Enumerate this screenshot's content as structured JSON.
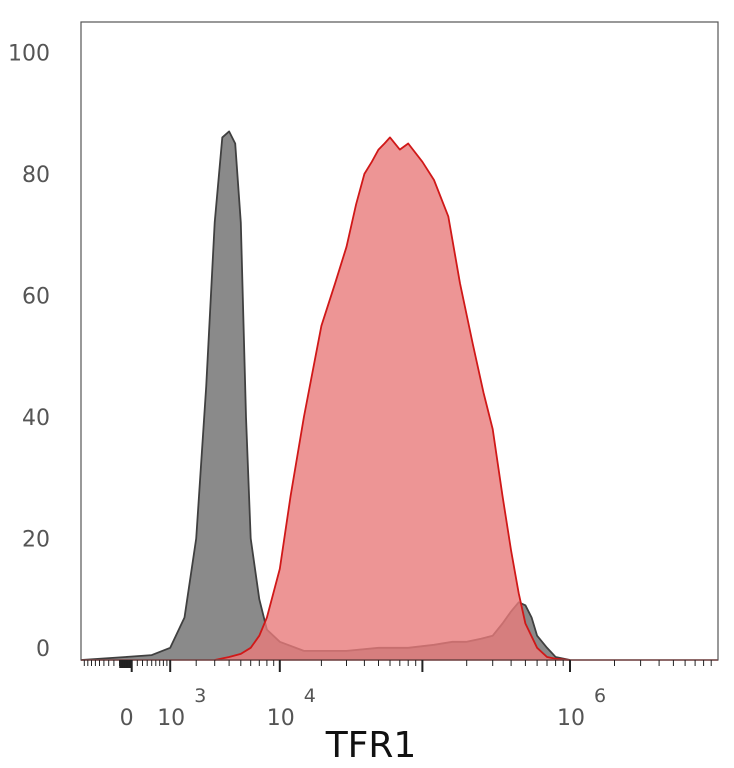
{
  "chart_data": {
    "type": "area",
    "title": "",
    "xlabel": "TFR1",
    "ylabel": "",
    "x_scale": "biexponential",
    "xlim": [
      -1000,
      10000000
    ],
    "ylim": [
      0,
      105
    ],
    "y_ticks": [
      "0",
      "20",
      "40",
      "60",
      "80",
      "100"
    ],
    "x_ticks": [
      {
        "base": "0",
        "exp": "",
        "value": 0
      },
      {
        "base": "10",
        "exp": "3",
        "value": 1000
      },
      {
        "base": "10",
        "exp": "4",
        "value": 10000
      },
      {
        "base": "10",
        "exp": "6",
        "value": 1000000
      }
    ],
    "series": [
      {
        "color": "#404040",
        "fill": "#8a8a8a",
        "x": [
          -1000,
          0,
          500,
          1000,
          1500,
          2000,
          2500,
          3000,
          3500,
          4000,
          4500,
          5000,
          5500,
          6000,
          7000,
          8000,
          10000,
          15000,
          30000,
          50000,
          80000,
          120000,
          160000,
          200000,
          250000,
          300000,
          350000,
          400000,
          450000,
          500000,
          550000,
          600000,
          700000,
          800000,
          1000000
        ],
        "y": [
          0,
          0.5,
          0.8,
          2,
          7,
          20,
          45,
          72,
          86,
          87,
          85,
          72,
          40,
          20,
          10,
          5,
          3,
          1.5,
          1.5,
          2,
          2,
          2.5,
          3,
          3,
          3.5,
          4,
          6,
          8,
          9.5,
          9,
          7,
          4,
          2,
          0.5,
          0
        ]
      },
      {
        "color": "#d01818",
        "fill": "#e87a7a",
        "x": [
          3000,
          4000,
          5000,
          6000,
          7000,
          8000,
          10000,
          12000,
          15000,
          20000,
          25000,
          30000,
          35000,
          40000,
          45000,
          50000,
          55000,
          60000,
          70000,
          80000,
          100000,
          120000,
          150000,
          180000,
          220000,
          260000,
          300000,
          350000,
          400000,
          450000,
          500000,
          600000,
          700000,
          800000,
          1000000
        ],
        "y": [
          0,
          0.5,
          1,
          2,
          4,
          7,
          15,
          27,
          40,
          55,
          62,
          68,
          75,
          80,
          82,
          84,
          85,
          86,
          84,
          85,
          82,
          79,
          73,
          62,
          52,
          44,
          38,
          27,
          18,
          11,
          6,
          2,
          0.5,
          0.2,
          0
        ]
      }
    ]
  }
}
